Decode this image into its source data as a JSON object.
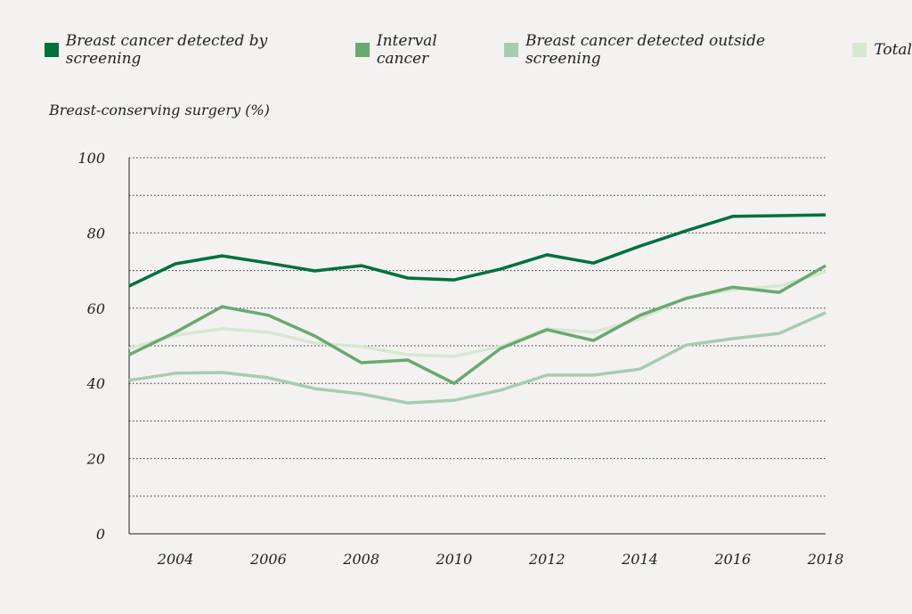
{
  "chart_data": {
    "type": "line",
    "ylabel": "Breast-conserving surgery (%)",
    "xlabel": "",
    "ylim": [
      0,
      100
    ],
    "yticks": [
      0,
      20,
      40,
      60,
      80,
      100
    ],
    "xticks": [
      2004,
      2006,
      2008,
      2010,
      2012,
      2014,
      2016,
      2018
    ],
    "grid": true,
    "legend_position": "top",
    "x": [
      2003,
      2004,
      2005,
      2006,
      2007,
      2008,
      2009,
      2010,
      2011,
      2012,
      2013,
      2014,
      2015,
      2016,
      2017,
      2018
    ],
    "series": [
      {
        "name": "Breast cancer detected by screening",
        "color": "#00703c",
        "values": [
          65.9,
          71.8,
          73.9,
          72.0,
          69.9,
          71.3,
          68.0,
          67.5,
          70.4,
          74.2,
          72.0,
          76.5,
          80.6,
          84.4,
          84.6,
          84.8
        ]
      },
      {
        "name": "Interval cancer",
        "color": "#6aa872",
        "values": [
          47.6,
          53.6,
          60.4,
          58.1,
          52.6,
          45.5,
          46.2,
          40.0,
          49.3,
          54.3,
          51.4,
          58.1,
          62.6,
          65.6,
          64.2,
          71.3
        ]
      },
      {
        "name": "Breast cancer detected outside screening",
        "color": "#a6ccb3",
        "values": [
          40.8,
          42.7,
          42.9,
          41.5,
          38.6,
          37.2,
          34.8,
          35.5,
          38.2,
          42.2,
          42.2,
          43.8,
          50.2,
          51.9,
          53.3,
          58.8
        ]
      },
      {
        "name": "Total",
        "color": "#d7e8d0",
        "values": [
          49.3,
          52.8,
          54.5,
          53.6,
          50.7,
          49.8,
          47.6,
          47.2,
          49.8,
          54.5,
          53.6,
          57.1,
          62.8,
          64.9,
          65.9,
          69.7
        ]
      }
    ]
  }
}
